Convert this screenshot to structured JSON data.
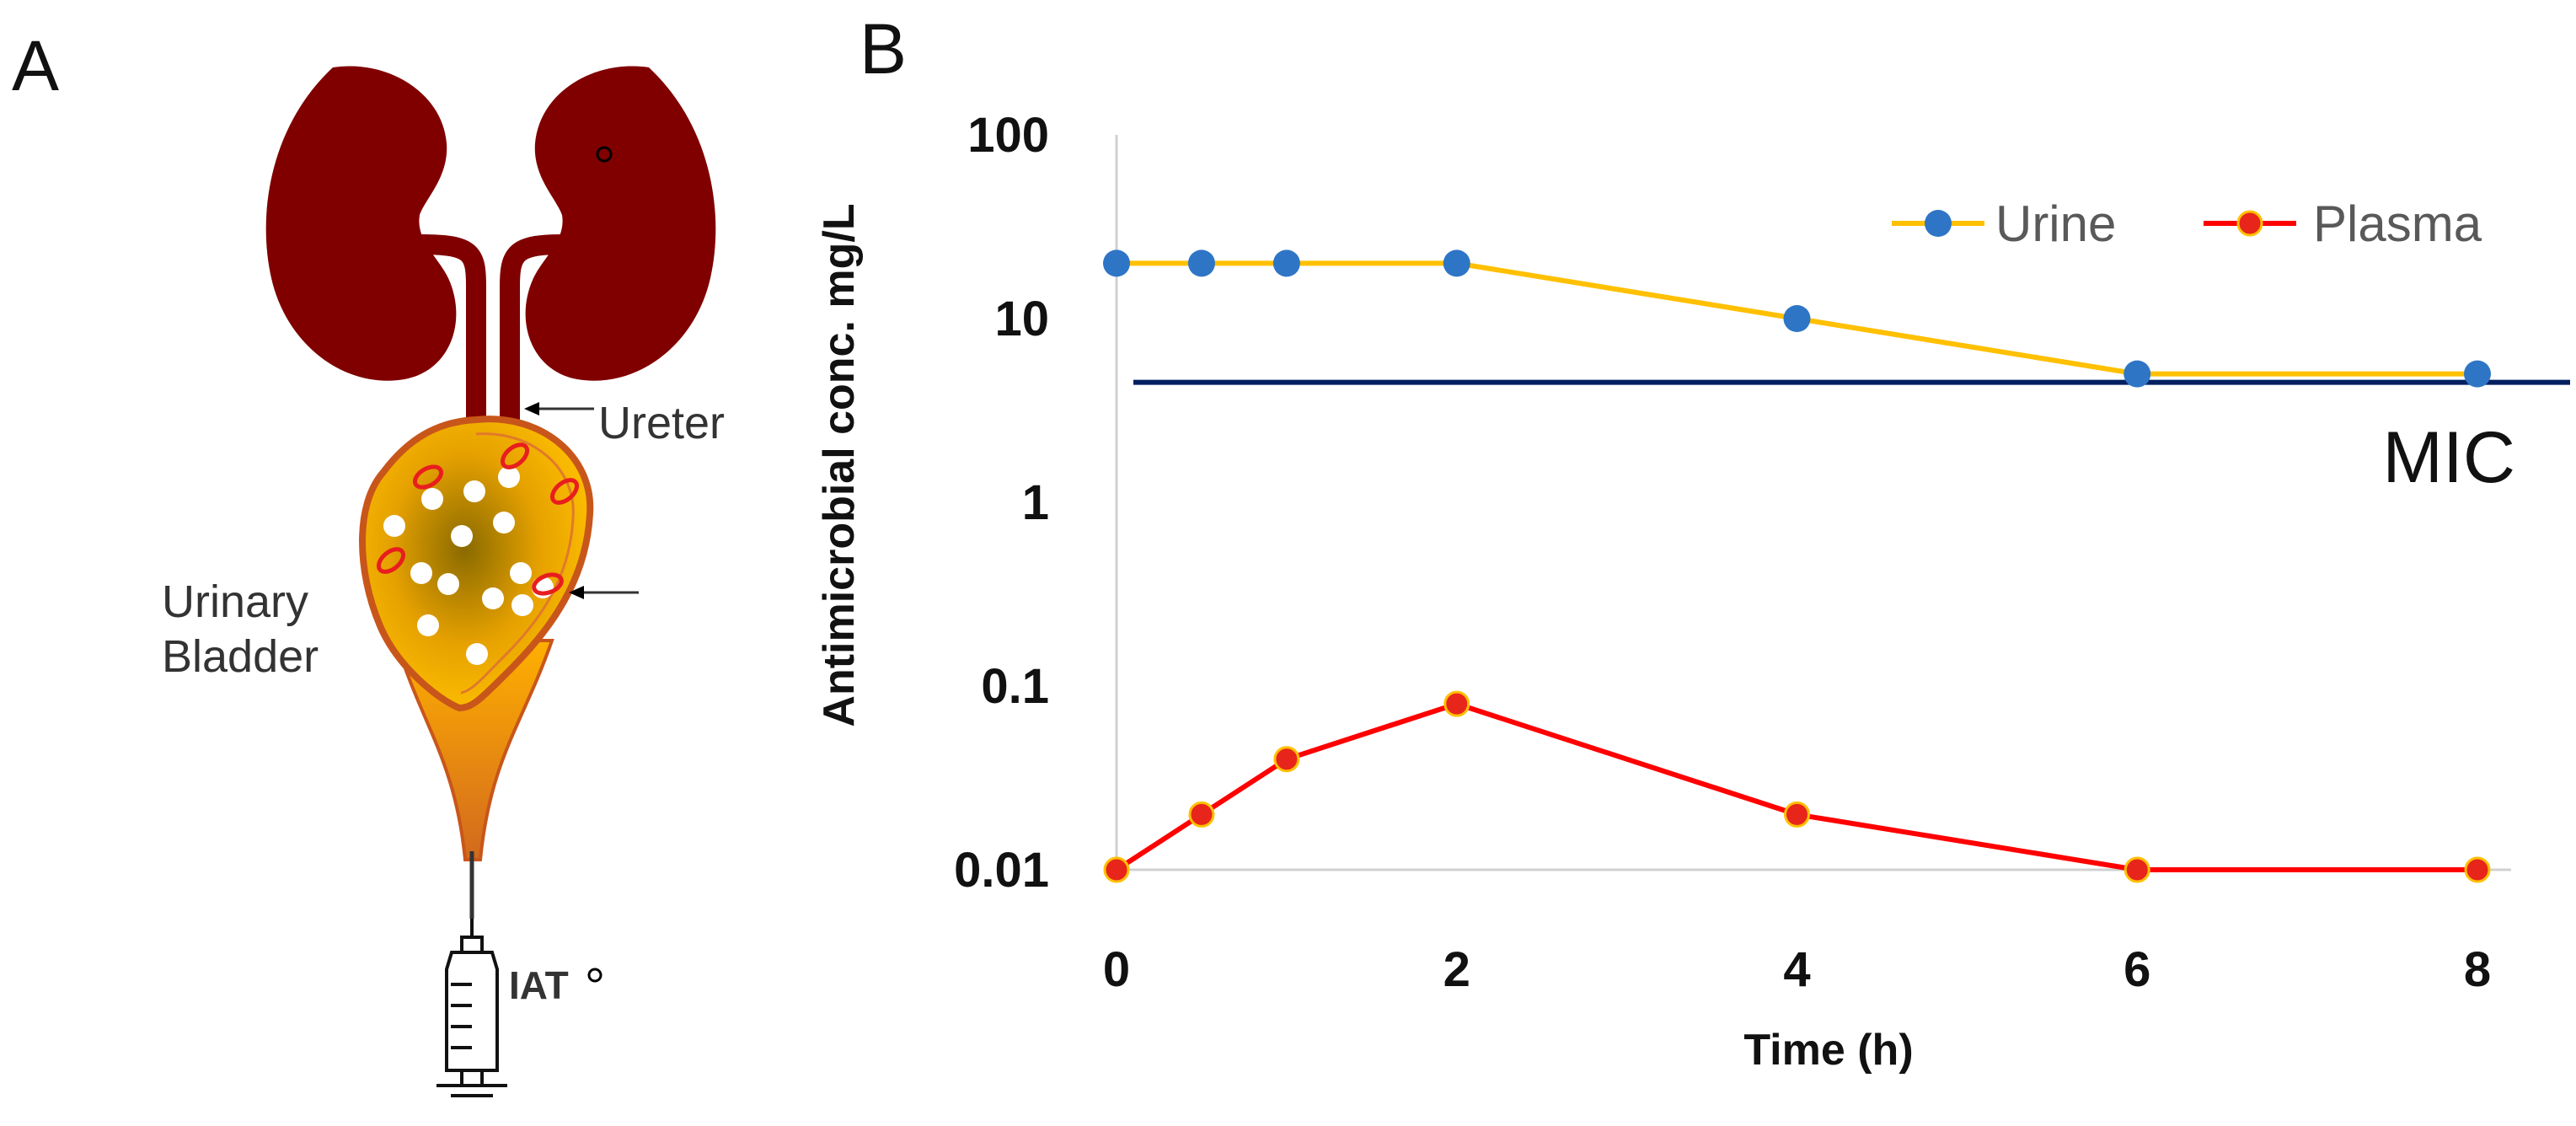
{
  "panels": {
    "a_letter": "A",
    "b_letter": "B"
  },
  "anatomy": {
    "ureter_label": "Ureter",
    "bladder_label_line1": "Urinary",
    "bladder_label_line2": "Bladder",
    "iat_label": "IAT"
  },
  "colors": {
    "kidney": "#800000",
    "bladder_fill": "#F5A800",
    "bladder_edge": "#C8561A",
    "bacteria": "#E81E1E",
    "urine_line": "#FFC000",
    "urine_marker": "#2E75C6",
    "plasma_line": "#FF0000",
    "plasma_marker": "#E8251A",
    "plasma_marker_edge": "#FFC000",
    "mic_line": "#002060",
    "axis_grid": "#D0D0D0"
  },
  "chart_data": {
    "type": "line",
    "yscale": "log",
    "xlabel": "Time (h)",
    "ylabel": "Antimicrobial conc. mg/L",
    "xlim": [
      0,
      8
    ],
    "ylim": [
      0.01,
      100
    ],
    "xticks": [
      "0",
      "2",
      "4",
      "6",
      "8"
    ],
    "yticks": [
      "0.01",
      "0.1",
      "1",
      "10",
      "100"
    ],
    "legend_position": "top-right",
    "series": [
      {
        "name": "Urine",
        "x": [
          0,
          0.5,
          1,
          2,
          4,
          6,
          8
        ],
        "y": [
          20,
          20,
          20,
          20,
          10,
          5,
          5
        ]
      },
      {
        "name": "Plasma",
        "x": [
          0,
          0.5,
          1,
          2,
          4,
          6,
          8
        ],
        "y": [
          0.01,
          0.02,
          0.04,
          0.08,
          0.02,
          0.01,
          0.01
        ]
      }
    ],
    "threshold": {
      "label": "MIC",
      "y": 4.5
    }
  }
}
